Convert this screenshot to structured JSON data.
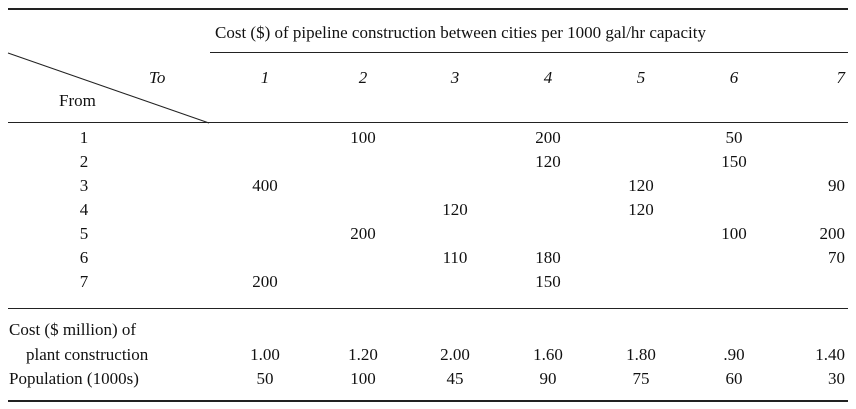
{
  "title": "Cost ($) of pipeline construction between cities per 1000 gal/hr capacity",
  "corner": {
    "to": "To",
    "from": "From"
  },
  "columns": [
    "1",
    "2",
    "3",
    "4",
    "5",
    "6",
    "7"
  ],
  "rows": [
    {
      "label": "1",
      "cells": [
        "",
        "100",
        "",
        "200",
        "",
        "50",
        ""
      ]
    },
    {
      "label": "2",
      "cells": [
        "",
        "",
        "",
        "120",
        "",
        "150",
        ""
      ]
    },
    {
      "label": "3",
      "cells": [
        "400",
        "",
        "",
        "",
        "120",
        "",
        "90"
      ]
    },
    {
      "label": "4",
      "cells": [
        "",
        "",
        "120",
        "",
        "120",
        "",
        ""
      ]
    },
    {
      "label": "5",
      "cells": [
        "",
        "200",
        "",
        "",
        "",
        "100",
        "200"
      ]
    },
    {
      "label": "6",
      "cells": [
        "",
        "",
        "110",
        "180",
        "",
        "",
        "70"
      ]
    },
    {
      "label": "7",
      "cells": [
        "200",
        "",
        "",
        "150",
        "",
        "",
        ""
      ]
    }
  ],
  "plant_cost": {
    "label_line1": "Cost ($ million) of",
    "label_line2": "plant construction",
    "values": [
      "1.00",
      "1.20",
      "2.00",
      "1.60",
      "1.80",
      ".90",
      "1.40"
    ]
  },
  "population": {
    "label": "Population (1000s)",
    "values": [
      "50",
      "100",
      "45",
      "90",
      "75",
      "60",
      "30"
    ]
  }
}
